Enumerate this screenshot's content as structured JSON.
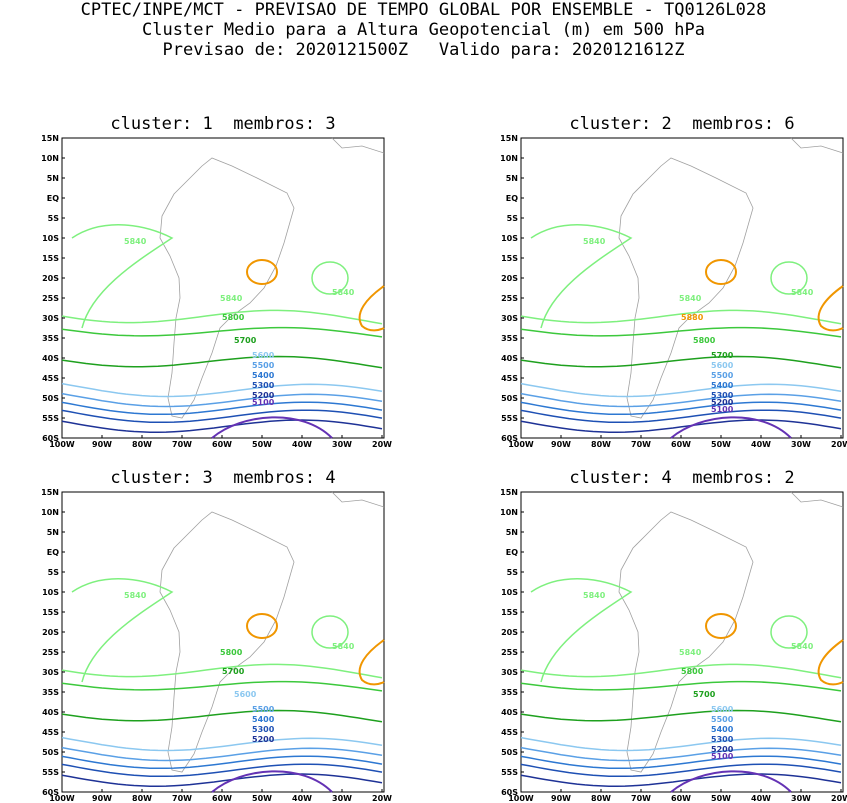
{
  "header": {
    "line1": "CPTEC/INPE/MCT - PREVISAO DE TEMPO GLOBAL POR ENSEMBLE - TQ0126L028",
    "line2": "Cluster Medio para a Altura Geopotencial (m) em 500 hPa",
    "line3": "Previsao de: 2020121500Z   Valido para: 2020121612Z"
  },
  "axes": {
    "lat_labels": [
      "15N",
      "10N",
      "5N",
      "EQ",
      "5S",
      "10S",
      "15S",
      "20S",
      "25S",
      "30S",
      "35S",
      "40S",
      "45S",
      "50S",
      "55S",
      "60S"
    ],
    "lon_labels": [
      "100W",
      "90W",
      "80W",
      "70W",
      "60W",
      "50W",
      "40W",
      "30W",
      "20W"
    ]
  },
  "colors": {
    "c5840": "#7ef07e",
    "c5800": "#3cc83c",
    "c5700": "#1ea01e",
    "c5600": "#8cc8f0",
    "c5500": "#5aa0e6",
    "c5400": "#2d78d2",
    "c5300": "#1e50b4",
    "c5200": "#1e3296",
    "c5100": "#6432b4",
    "high": "#f09600",
    "high2": "#dc6e00",
    "map": "#a0a0a0"
  },
  "panels": [
    {
      "title": "cluster: 1  membros: 3",
      "labels": [
        "5840",
        "5840",
        "5840",
        "5800",
        "5700",
        "5600",
        "5500",
        "5400",
        "5300",
        "5200",
        "5100"
      ]
    },
    {
      "title": "cluster: 2  membros: 6",
      "labels": [
        "5840",
        "5840",
        "5840",
        "5880",
        "5800",
        "5700",
        "5600",
        "5500",
        "5400",
        "5300",
        "5200",
        "5100"
      ]
    },
    {
      "title": "cluster: 3  membros: 4",
      "labels": [
        "5840",
        "5840",
        "5800",
        "5700",
        "5600",
        "5500",
        "5400",
        "5300",
        "5200"
      ]
    },
    {
      "title": "cluster: 4  membros: 2",
      "labels": [
        "5840",
        "5840",
        "5840",
        "5800",
        "5700",
        "5600",
        "5500",
        "5400",
        "5300",
        "5200",
        "5100"
      ]
    }
  ]
}
